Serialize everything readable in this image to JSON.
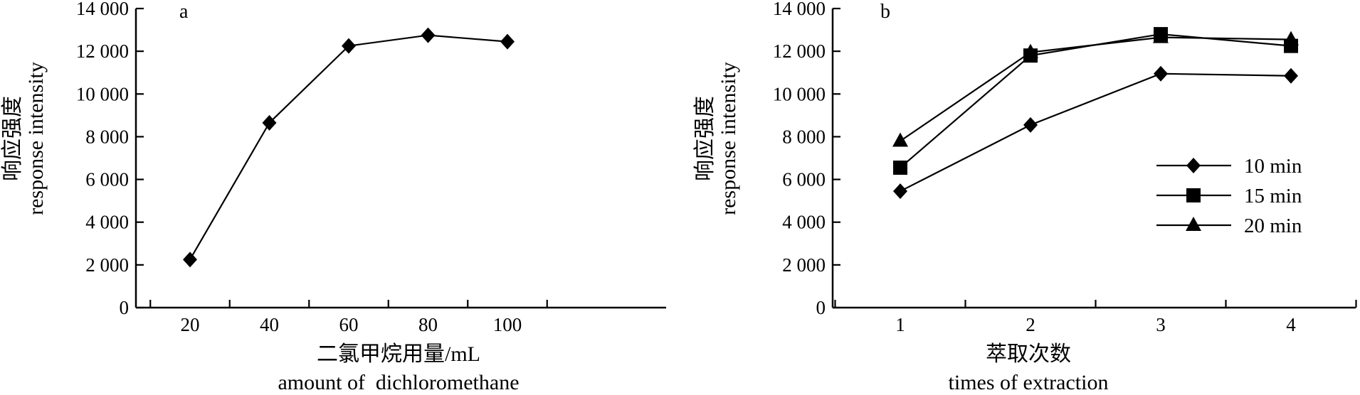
{
  "chart_data": [
    {
      "type": "line",
      "panel_label": "a",
      "x": [
        20,
        40,
        60,
        80,
        100
      ],
      "x_tick_labels": [
        "20",
        "40",
        "60",
        "80",
        "100"
      ],
      "series": [
        {
          "values": [
            2250,
            8650,
            12250,
            12750,
            12450
          ],
          "marker": "diamond"
        }
      ],
      "ylim": [
        0,
        14000
      ],
      "y_ticks": [
        0,
        2000,
        4000,
        6000,
        8000,
        10000,
        12000,
        14000
      ],
      "y_tick_labels": [
        "0",
        "2 000",
        "4 000",
        "6 000",
        "8 000",
        "10 000",
        "12 000",
        "14 000"
      ],
      "xlabel_cn": "二氯甲烷用量/mL",
      "xlabel_en": "amount of  dichloromethane",
      "ylabel_cn": "响应强度",
      "ylabel_en": "response intensity",
      "grid": false,
      "legend": "none",
      "color": "#000000"
    },
    {
      "type": "line",
      "panel_label": "b",
      "x": [
        1,
        2,
        3,
        4
      ],
      "x_tick_labels": [
        "1",
        "2",
        "3",
        "4"
      ],
      "series": [
        {
          "name": "10 min",
          "values": [
            5450,
            8550,
            10950,
            10850
          ],
          "marker": "diamond"
        },
        {
          "name": "15 min",
          "values": [
            6550,
            11800,
            12800,
            12250
          ],
          "marker": "square"
        },
        {
          "name": "20 min",
          "values": [
            7800,
            11950,
            12650,
            12550
          ],
          "marker": "triangle"
        }
      ],
      "ylim": [
        0,
        14000
      ],
      "y_ticks": [
        0,
        2000,
        4000,
        6000,
        8000,
        10000,
        12000,
        14000
      ],
      "y_tick_labels": [
        "0",
        "2 000",
        "4 000",
        "6 000",
        "8 000",
        "10 000",
        "12 000",
        "14 000"
      ],
      "xlabel_cn": "萃取次数",
      "xlabel_en": "times of extraction",
      "ylabel_cn": "响应强度",
      "ylabel_en": "response intensity",
      "grid": false,
      "legend": "right",
      "color": "#000000"
    }
  ]
}
